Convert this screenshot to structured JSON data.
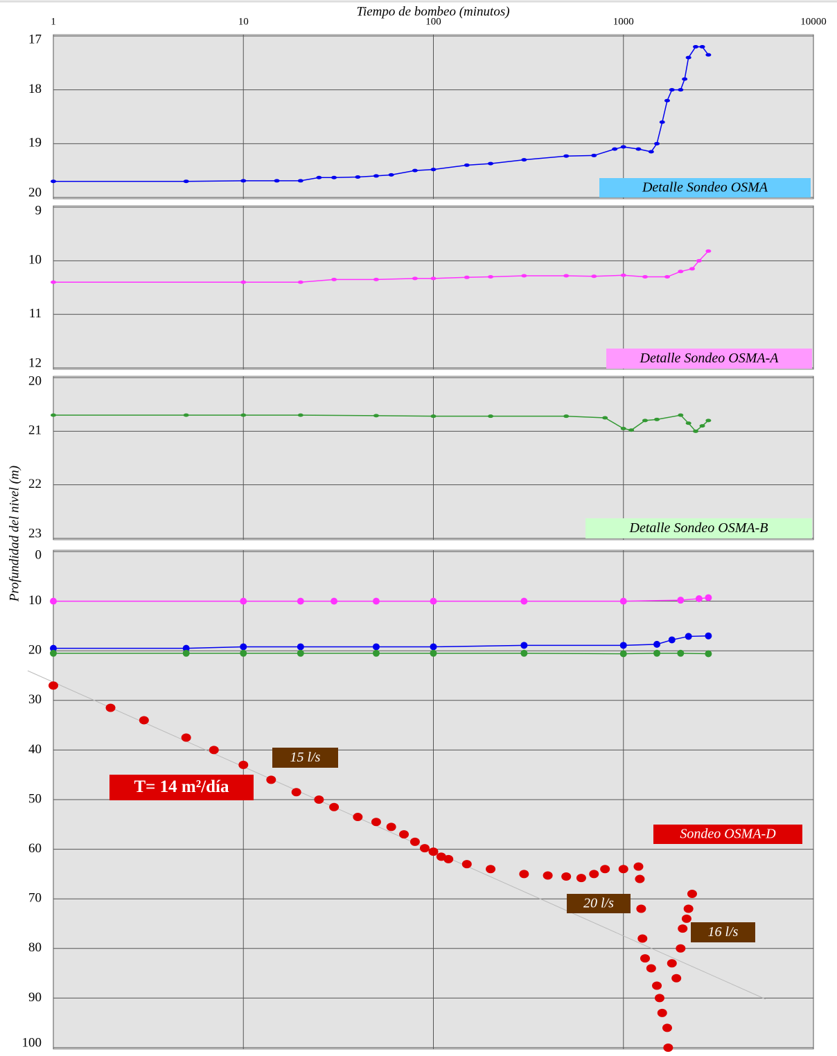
{
  "chart_data": [
    {
      "type": "scatter",
      "xlabel": "Tiempo de bombeo (minutos)",
      "ylabel": "Profundidad del nivel (m)",
      "xscale": "log",
      "xlim": [
        1,
        10000
      ],
      "xticks": [
        1,
        10,
        100,
        1000,
        10000
      ],
      "ylim": [
        17,
        20
      ],
      "yticks": [
        17,
        18,
        19,
        20
      ],
      "inverted": true,
      "grid": true,
      "annotation": "Detalle Sondeo OSMA",
      "series": [
        {
          "color": "#0000ee",
          "x": [
            1,
            5,
            10,
            15,
            20,
            25,
            30,
            40,
            50,
            60,
            80,
            100,
            150,
            200,
            300,
            500,
            700,
            900,
            1000,
            1200,
            1400,
            1500,
            1600,
            1700,
            1800,
            2000,
            2100,
            2200,
            2400,
            2600,
            2800
          ],
          "values": [
            19.7,
            19.7,
            19.69,
            19.69,
            19.69,
            19.63,
            19.63,
            19.62,
            19.6,
            19.58,
            19.5,
            19.48,
            19.4,
            19.37,
            19.3,
            19.23,
            19.22,
            19.1,
            19.06,
            19.1,
            19.15,
            19.0,
            18.6,
            18.2,
            18.0,
            18.0,
            17.8,
            17.4,
            17.2,
            17.2,
            17.35
          ]
        }
      ]
    },
    {
      "type": "scatter",
      "xscale": "log",
      "xlim": [
        1,
        10000
      ],
      "ylim": [
        9,
        12
      ],
      "yticks": [
        9,
        10,
        11,
        12
      ],
      "inverted": true,
      "grid": true,
      "annotation": "Detalle Sondeo OSMA-A",
      "series": [
        {
          "color": "#ff33ff",
          "x": [
            1,
            10,
            20,
            30,
            50,
            80,
            100,
            150,
            200,
            300,
            500,
            700,
            1000,
            1300,
            1700,
            2000,
            2300,
            2500,
            2800
          ],
          "values": [
            10.4,
            10.4,
            10.4,
            10.35,
            10.35,
            10.33,
            10.33,
            10.31,
            10.3,
            10.28,
            10.28,
            10.29,
            10.27,
            10.3,
            10.3,
            10.2,
            10.15,
            10.0,
            9.82
          ]
        }
      ]
    },
    {
      "type": "scatter",
      "xscale": "log",
      "xlim": [
        1,
        10000
      ],
      "ylim": [
        20,
        23
      ],
      "yticks": [
        20,
        21,
        22,
        23
      ],
      "inverted": true,
      "grid": true,
      "annotation": "Detalle Sondeo OSMA-B",
      "series": [
        {
          "color": "#339933",
          "x": [
            1,
            5,
            10,
            20,
            50,
            100,
            200,
            500,
            800,
            1000,
            1100,
            1300,
            1500,
            2000,
            2200,
            2400,
            2600,
            2800
          ],
          "values": [
            20.7,
            20.7,
            20.7,
            20.7,
            20.71,
            20.72,
            20.72,
            20.72,
            20.75,
            20.95,
            20.98,
            20.8,
            20.78,
            20.7,
            20.85,
            21.0,
            20.9,
            20.8
          ]
        }
      ]
    },
    {
      "type": "scatter",
      "xscale": "log",
      "xlim": [
        1,
        10000
      ],
      "ylim": [
        0,
        100
      ],
      "yticks": [
        0,
        10,
        20,
        30,
        40,
        50,
        60,
        70,
        80,
        90,
        100
      ],
      "inverted": true,
      "grid": true,
      "annotations": [
        "Sondeo OSMA-D",
        "15 l/s",
        "20 l/s",
        "16 l/s",
        "T= 14 m²/día"
      ],
      "series": [
        {
          "color": "#ff33ff",
          "x": [
            1,
            10,
            20,
            30,
            50,
            100,
            300,
            1000,
            2000,
            2500,
            2800
          ],
          "values": [
            10,
            10,
            10,
            10,
            10,
            10,
            10,
            10,
            9.8,
            9.5,
            9.3
          ]
        },
        {
          "color": "#0000ee",
          "x": [
            1,
            5,
            10,
            20,
            50,
            100,
            300,
            1000,
            1500,
            1800,
            2200,
            2800
          ],
          "values": [
            19.5,
            19.5,
            19.2,
            19.2,
            19.2,
            19.2,
            18.9,
            18.9,
            18.7,
            17.8,
            17.1,
            17
          ]
        },
        {
          "color": "#339933",
          "x": [
            1,
            5,
            10,
            20,
            50,
            100,
            300,
            1000,
            1500,
            2000,
            2800
          ],
          "values": [
            20.5,
            20.5,
            20.5,
            20.5,
            20.5,
            20.5,
            20.5,
            20.6,
            20.5,
            20.5,
            20.6
          ]
        },
        {
          "color": "#dd0000",
          "line": false,
          "x": [
            1,
            2,
            3,
            5,
            7,
            10,
            14,
            19,
            25,
            30,
            40,
            50,
            60,
            70,
            80,
            90,
            100,
            110,
            120,
            150,
            200,
            300,
            400,
            500,
            600,
            700,
            800,
            1000,
            1200,
            1220,
            1240,
            1260,
            1300,
            1400,
            1500,
            1550,
            1600,
            1700,
            1720,
            1800,
            1900,
            2000,
            2050,
            2150,
            2200,
            2300
          ],
          "values": [
            27,
            31.5,
            34,
            37.5,
            40,
            43,
            46,
            48.5,
            50,
            51.5,
            53.5,
            54.5,
            55.5,
            57,
            58.5,
            59.8,
            60.5,
            61.5,
            62,
            63,
            64,
            65,
            65.3,
            65.5,
            65.8,
            65,
            64,
            64,
            63.5,
            66,
            72,
            78,
            82,
            84,
            87.5,
            90,
            93,
            96,
            100,
            83,
            86,
            80,
            76,
            74,
            72,
            69
          ]
        }
      ]
    }
  ]
}
